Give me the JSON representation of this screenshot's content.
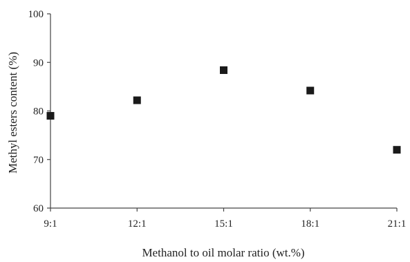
{
  "chart_data": {
    "type": "scatter",
    "title": "",
    "xlabel": "Methanol to oil molar ratio (wt.%)",
    "ylabel": "Methyl esters content (%)",
    "categories": [
      "9:1",
      "12:1",
      "15:1",
      "18:1",
      "21:1"
    ],
    "series": [
      {
        "values": [
          79,
          82.2,
          88.4,
          84.2,
          72
        ]
      }
    ],
    "ylim": [
      60,
      100
    ],
    "yticks": [
      60,
      70,
      80,
      90,
      100
    ],
    "grid": false,
    "legend": "none",
    "marker": "square",
    "colors": {
      "marker": "#1a1a1a",
      "axis": "#444444",
      "text": "#222222"
    }
  }
}
